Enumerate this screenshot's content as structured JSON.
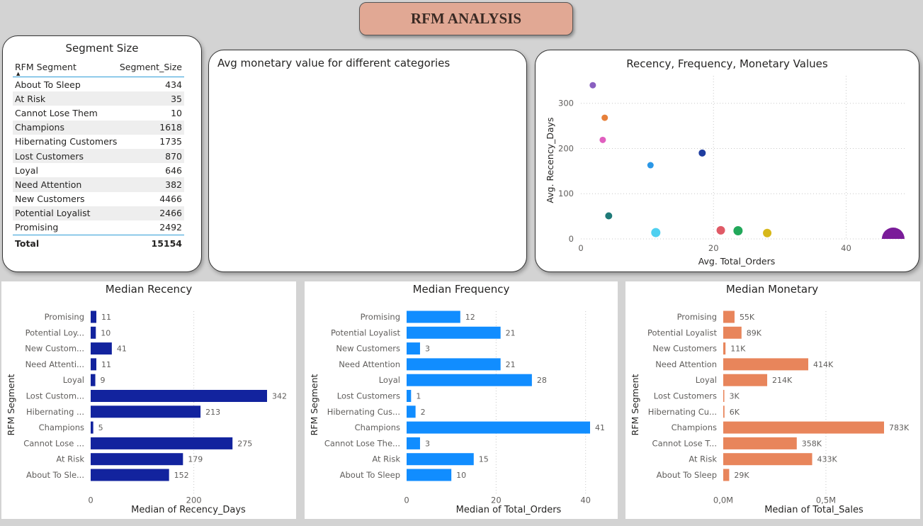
{
  "page_title": "RFM ANALYSIS",
  "segment_table": {
    "title": "Segment Size",
    "col1": "RFM Segment",
    "col2": "Segment_Size",
    "rows": [
      {
        "segment": "About To Sleep",
        "size": "434"
      },
      {
        "segment": "At Risk",
        "size": "35"
      },
      {
        "segment": "Cannot Lose Them",
        "size": "10"
      },
      {
        "segment": "Champions",
        "size": "1618"
      },
      {
        "segment": "Hibernating Customers",
        "size": "1735"
      },
      {
        "segment": "Lost Customers",
        "size": "870"
      },
      {
        "segment": "Loyal",
        "size": "646"
      },
      {
        "segment": "Need Attention",
        "size": "382"
      },
      {
        "segment": "New Customers",
        "size": "4466"
      },
      {
        "segment": "Potential Loyalist",
        "size": "2466"
      },
      {
        "segment": "Promising",
        "size": "2492"
      }
    ],
    "total_label": "Total",
    "total_value": "15154"
  },
  "avg_monetary": {
    "title": "Avg monetary value for different categories"
  },
  "chart_data": [
    {
      "id": "scatter",
      "type": "scatter",
      "title": "Recency, Frequency, Monetary Values",
      "xlabel": "Avg. Total_Orders",
      "ylabel": "Avg. Recency_Days",
      "xlim": [
        0,
        47
      ],
      "ylim": [
        0,
        345
      ],
      "xticks": [
        0,
        20,
        40
      ],
      "yticks": [
        0,
        100,
        200,
        300
      ],
      "grid": true,
      "points": [
        {
          "x": 1.8,
          "y": 340,
          "size": 4.5,
          "color": "#8a5fc0"
        },
        {
          "x": 3.6,
          "y": 268,
          "size": 4.5,
          "color": "#e7803a"
        },
        {
          "x": 3.3,
          "y": 219,
          "size": 4.5,
          "color": "#e05fbf"
        },
        {
          "x": 18.3,
          "y": 190,
          "size": 5,
          "color": "#1f3da0"
        },
        {
          "x": 10.5,
          "y": 163,
          "size": 4.5,
          "color": "#2b97e6"
        },
        {
          "x": 4.2,
          "y": 51,
          "size": 5,
          "color": "#1f7a78"
        },
        {
          "x": 11.3,
          "y": 14,
          "size": 6.5,
          "color": "#4fd0f0"
        },
        {
          "x": 21.1,
          "y": 19,
          "size": 6,
          "color": "#e05a66"
        },
        {
          "x": 23.7,
          "y": 18,
          "size": 6.5,
          "color": "#22a85a"
        },
        {
          "x": 28.1,
          "y": 13,
          "size": 6,
          "color": "#d7b81a"
        },
        {
          "x": 47.1,
          "y": 0,
          "size": 16,
          "color": "#7a1c99"
        }
      ]
    },
    {
      "id": "recency",
      "type": "bar",
      "orientation": "horizontal",
      "title": "Median Recency",
      "xlabel": "Median of Recency_Days",
      "ylabel": "RFM Segment",
      "color": "#12239e",
      "categories": [
        "Promising",
        "Potential Loy...",
        "New Custom...",
        "Need Attenti...",
        "Loyal",
        "Lost Custom...",
        "Hibernating ...",
        "Champions",
        "Cannot Lose ...",
        "At Risk",
        "About To Sle..."
      ],
      "values": [
        11,
        10,
        41,
        11,
        9,
        342,
        213,
        5,
        275,
        179,
        152
      ],
      "value_labels": [
        "11",
        "10",
        "41",
        "11",
        "9",
        "342",
        "213",
        "5",
        "275",
        "179",
        "152"
      ],
      "xlim": [
        0,
        342
      ],
      "xticks": [
        0,
        200
      ],
      "xtick_labels": [
        "0",
        "200"
      ]
    },
    {
      "id": "frequency",
      "type": "bar",
      "orientation": "horizontal",
      "title": "Median Frequency",
      "xlabel": "Median of Total_Orders",
      "ylabel": "RFM Segment",
      "color": "#118dff",
      "categories": [
        "Promising",
        "Potential Loyalist",
        "New Customers",
        "Need Attention",
        "Loyal",
        "Lost Customers",
        "Hibernating Cus...",
        "Champions",
        "Cannot Lose The...",
        "At Risk",
        "About To Sleep"
      ],
      "values": [
        12,
        21,
        3,
        21,
        28,
        1,
        2,
        41,
        3,
        15,
        10
      ],
      "value_labels": [
        "12",
        "21",
        "3",
        "21",
        "28",
        "1",
        "2",
        "41",
        "3",
        "15",
        "10"
      ],
      "xlim": [
        0,
        41
      ],
      "xticks": [
        0,
        20,
        40
      ],
      "xtick_labels": [
        "0",
        "20",
        "40"
      ]
    },
    {
      "id": "monetary",
      "type": "bar",
      "orientation": "horizontal",
      "title": "Median Monetary",
      "xlabel": "Median of Total_Sales",
      "ylabel": "RFM Segment",
      "color": "#e8855b",
      "categories": [
        "Promising",
        "Potential Loyalist",
        "New Customers",
        "Need Attention",
        "Loyal",
        "Lost Customers",
        "Hibernating Cu...",
        "Champions",
        "Cannot Lose T...",
        "At Risk",
        "About To Sleep"
      ],
      "values": [
        55000,
        89000,
        11000,
        414000,
        214000,
        3000,
        6000,
        783000,
        358000,
        433000,
        29000
      ],
      "value_labels": [
        "55K",
        "89K",
        "11K",
        "414K",
        "214K",
        "3K",
        "6K",
        "783K",
        "358K",
        "433K",
        "29K"
      ],
      "xlim": [
        0,
        783000
      ],
      "xticks": [
        0,
        500000
      ],
      "xtick_labels": [
        "0,0M",
        "0,5M"
      ]
    }
  ]
}
